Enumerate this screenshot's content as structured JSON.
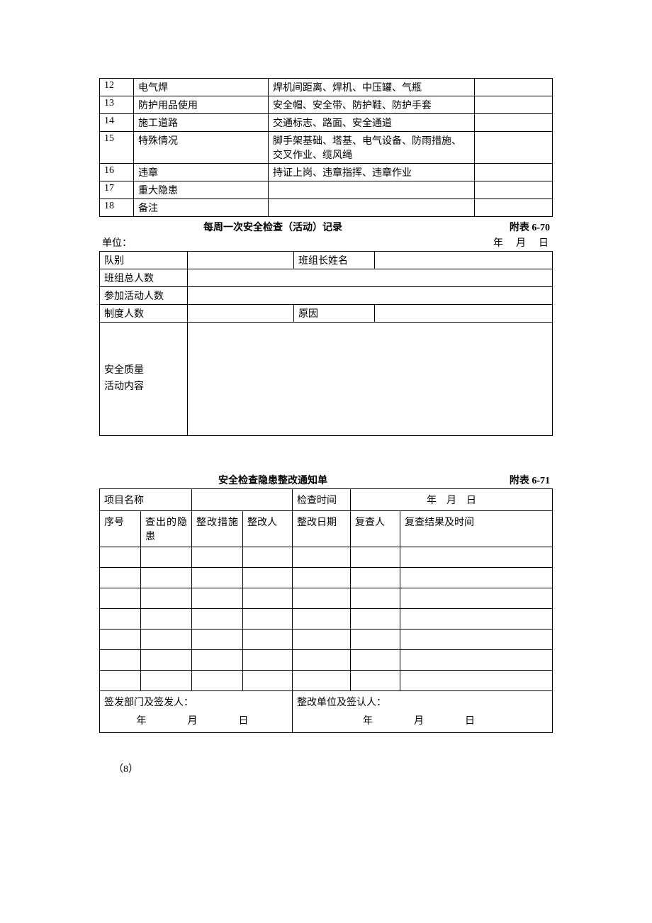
{
  "table1": {
    "rows": [
      {
        "num": "12",
        "item": "电气焊",
        "content": "焊机间距离、焊机、中压罐、气瓶",
        "note": ""
      },
      {
        "num": "13",
        "item": "防护用品使用",
        "content": "安全帽、安全带、防护鞋、防护手套",
        "note": ""
      },
      {
        "num": "14",
        "item": "施工道路",
        "content": "交通标志、路面、安全通道",
        "note": ""
      },
      {
        "num": "15",
        "item": "特殊情况",
        "content": "脚手架基础、塔基、电气设备、防雨措施、交叉作业、缆风绳",
        "note": ""
      },
      {
        "num": "16",
        "item": "违章",
        "content": "持证上岗、违章指挥、违章作业",
        "note": ""
      },
      {
        "num": "17",
        "item": "重大隐患",
        "content": "",
        "note": ""
      },
      {
        "num": "18",
        "item": "备注",
        "content": "",
        "note": ""
      }
    ]
  },
  "section2": {
    "title": "每周一次安全检查（活动）记录",
    "appendix": "附表 6-70",
    "unit_label": "单位：",
    "date_label": "年　月　日",
    "labels": {
      "team": "队别",
      "leader": "班组长姓名",
      "total": "班组总人数",
      "attend": "参加活动人数",
      "system": "制度人数",
      "reason": "原因",
      "content": "安全质量活动内容"
    }
  },
  "section3": {
    "title": "安全检查隐患整改通知单",
    "appendix": "附表 6-71",
    "labels": {
      "project": "项目名称",
      "check_time": "检查时间",
      "check_time_val": "年　月　日",
      "seq": "序号",
      "found": "查出的隐患",
      "measure": "整改措施",
      "person": "整改人",
      "date": "整改日期",
      "reviewer": "复查人",
      "result": "复查结果及时间"
    },
    "sign": {
      "left_label": "签发部门及签发人：",
      "right_label": "整改单位及签认人：",
      "date_line": "年　　月　　日"
    }
  },
  "footer": "（8）"
}
